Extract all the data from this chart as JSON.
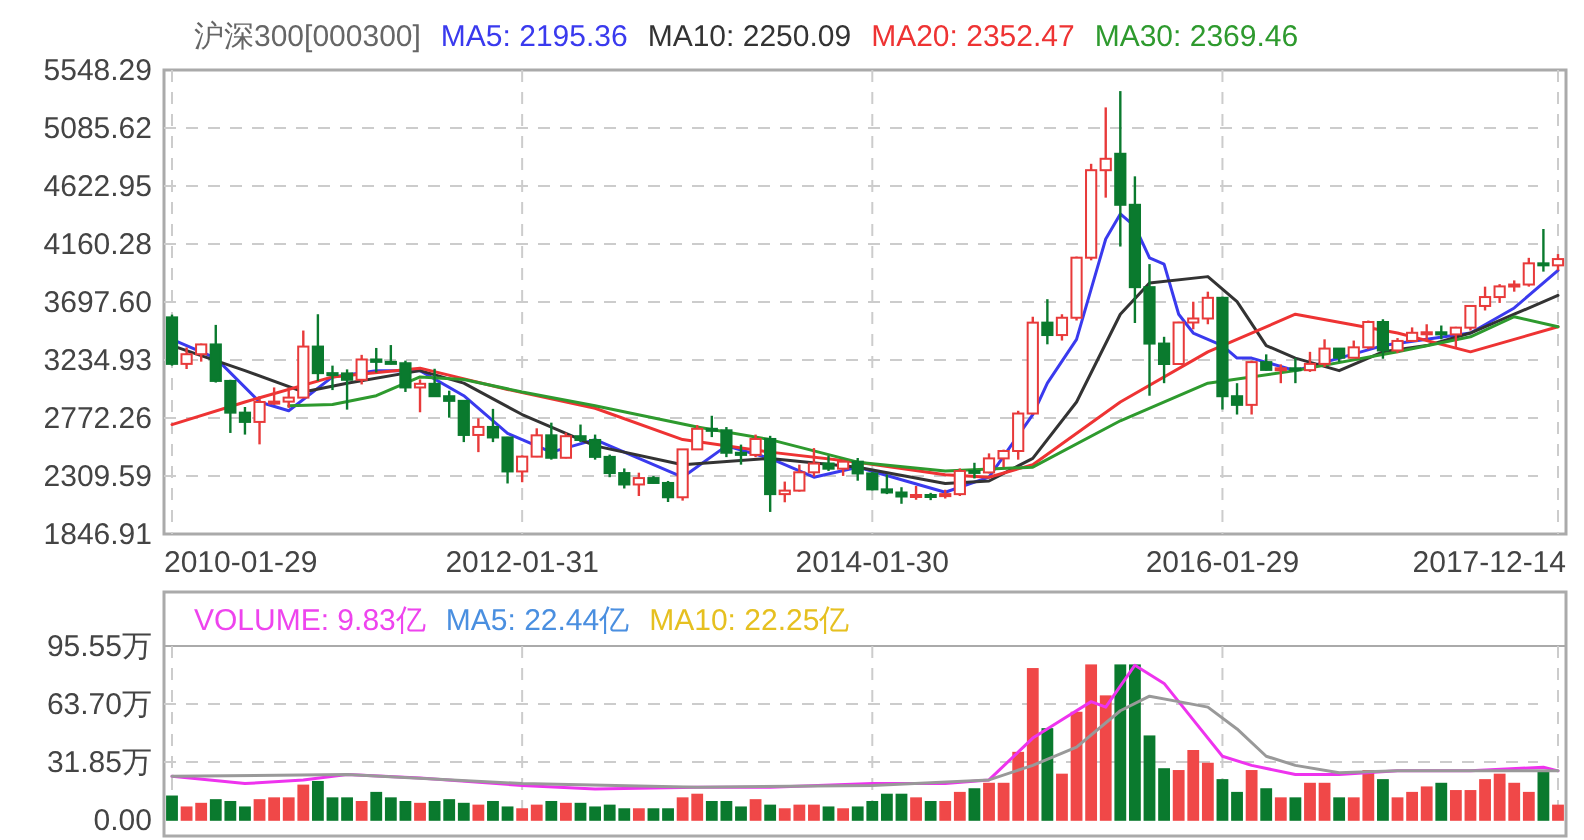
{
  "chart_data": [
    {
      "type": "candlestick",
      "title": "沪深300[000300]",
      "legend": "top left",
      "grid": true,
      "x": [
        "2010-01",
        "2010-02",
        "2010-03",
        "2010-04",
        "2010-05",
        "2010-06",
        "2010-07",
        "2010-08",
        "2010-09",
        "2010-10",
        "2010-11",
        "2010-12",
        "2011-01",
        "2011-02",
        "2011-03",
        "2011-04",
        "2011-05",
        "2011-06",
        "2011-07",
        "2011-08",
        "2011-09",
        "2011-10",
        "2011-11",
        "2011-12",
        "2012-01",
        "2012-02",
        "2012-03",
        "2012-04",
        "2012-05",
        "2012-06",
        "2012-07",
        "2012-08",
        "2012-09",
        "2012-10",
        "2012-11",
        "2012-12",
        "2013-01",
        "2013-02",
        "2013-03",
        "2013-04",
        "2013-05",
        "2013-06",
        "2013-07",
        "2013-08",
        "2013-09",
        "2013-10",
        "2013-11",
        "2013-12",
        "2014-01",
        "2014-02",
        "2014-03",
        "2014-04",
        "2014-05",
        "2014-06",
        "2014-07",
        "2014-08",
        "2014-09",
        "2014-10",
        "2014-11",
        "2014-12",
        "2015-01",
        "2015-02",
        "2015-03",
        "2015-04",
        "2015-05",
        "2015-06",
        "2015-07",
        "2015-08",
        "2015-09",
        "2015-10",
        "2015-11",
        "2015-12",
        "2016-01",
        "2016-02",
        "2016-03",
        "2016-04",
        "2016-05",
        "2016-06",
        "2016-07",
        "2016-08",
        "2016-09",
        "2016-10",
        "2016-11",
        "2016-12",
        "2017-01",
        "2017-02",
        "2017-03",
        "2017-04",
        "2017-05",
        "2017-06",
        "2017-07",
        "2017-08",
        "2017-09",
        "2017-10",
        "2017-11",
        "2017-12"
      ],
      "ohlc": [
        [
          3575,
          3597,
          3190,
          3204
        ],
        [
          3204,
          3335,
          3163,
          3281
        ],
        [
          3281,
          3366,
          3222,
          3359
        ],
        [
          3359,
          3515,
          3055,
          3068
        ],
        [
          3068,
          3077,
          2653,
          2815
        ],
        [
          2815,
          2860,
          2640,
          2741
        ],
        [
          2741,
          2946,
          2562,
          2900
        ],
        [
          2900,
          3016,
          2877,
          2903
        ],
        [
          2903,
          3015,
          2853,
          2935
        ],
        [
          2935,
          3470,
          2935,
          3342
        ],
        [
          3342,
          3600,
          3068,
          3130
        ],
        [
          3130,
          3190,
          2995,
          3128
        ],
        [
          3128,
          3160,
          2839,
          3077
        ],
        [
          3077,
          3276,
          3040,
          3239
        ],
        [
          3239,
          3331,
          3135,
          3220
        ],
        [
          3220,
          3354,
          3200,
          3209
        ],
        [
          3209,
          3230,
          2980,
          3016
        ],
        [
          3016,
          3080,
          2818,
          3045
        ],
        [
          3045,
          3165,
          2940,
          2946
        ],
        [
          2946,
          2990,
          2775,
          2909
        ],
        [
          2909,
          2915,
          2580,
          2637
        ],
        [
          2637,
          2770,
          2500,
          2701
        ],
        [
          2701,
          2845,
          2580,
          2617
        ],
        [
          2617,
          2622,
          2250,
          2346
        ],
        [
          2346,
          2474,
          2260,
          2464
        ],
        [
          2464,
          2690,
          2460,
          2634
        ],
        [
          2634,
          2735,
          2440,
          2455
        ],
        [
          2455,
          2655,
          2450,
          2627
        ],
        [
          2627,
          2720,
          2580,
          2597
        ],
        [
          2597,
          2640,
          2440,
          2462
        ],
        [
          2462,
          2480,
          2300,
          2333
        ],
        [
          2333,
          2370,
          2210,
          2242
        ],
        [
          2242,
          2336,
          2150,
          2293
        ],
        [
          2293,
          2310,
          2250,
          2254
        ],
        [
          2254,
          2270,
          2102,
          2140
        ],
        [
          2140,
          2525,
          2113,
          2522
        ],
        [
          2522,
          2716,
          2520,
          2686
        ],
        [
          2686,
          2790,
          2620,
          2674
        ],
        [
          2674,
          2700,
          2460,
          2495
        ],
        [
          2495,
          2560,
          2400,
          2478
        ],
        [
          2478,
          2640,
          2460,
          2605
        ],
        [
          2605,
          2630,
          2023,
          2165
        ],
        [
          2165,
          2265,
          2100,
          2193
        ],
        [
          2193,
          2400,
          2185,
          2339
        ],
        [
          2339,
          2532,
          2305,
          2409
        ],
        [
          2409,
          2470,
          2350,
          2368
        ],
        [
          2368,
          2440,
          2310,
          2424
        ],
        [
          2424,
          2453,
          2272,
          2330
        ],
        [
          2330,
          2340,
          2195,
          2203
        ],
        [
          2203,
          2320,
          2165,
          2178
        ],
        [
          2178,
          2220,
          2088,
          2146
        ],
        [
          2146,
          2230,
          2120,
          2158
        ],
        [
          2158,
          2175,
          2117,
          2157
        ],
        [
          2157,
          2200,
          2130,
          2165
        ],
        [
          2165,
          2370,
          2150,
          2350
        ],
        [
          2350,
          2415,
          2290,
          2338
        ],
        [
          2338,
          2490,
          2330,
          2450
        ],
        [
          2450,
          2520,
          2380,
          2509
        ],
        [
          2509,
          2830,
          2440,
          2808
        ],
        [
          2808,
          3580,
          2800,
          3533
        ],
        [
          3533,
          3720,
          3360,
          3434
        ],
        [
          3434,
          3600,
          3390,
          3572
        ],
        [
          3572,
          4060,
          3550,
          4051
        ],
        [
          4051,
          4800,
          4030,
          4749
        ],
        [
          4749,
          5250,
          4530,
          4840
        ],
        [
          4880,
          5380,
          4140,
          4473
        ],
        [
          4473,
          4700,
          3530,
          3816
        ],
        [
          3816,
          4000,
          2950,
          3366
        ],
        [
          3366,
          3420,
          3050,
          3203
        ],
        [
          3203,
          3540,
          3200,
          3534
        ],
        [
          3534,
          3700,
          3480,
          3566
        ],
        [
          3566,
          3780,
          3520,
          3731
        ],
        [
          3731,
          3740,
          2840,
          2946
        ],
        [
          2946,
          3050,
          2800,
          2877
        ],
        [
          2877,
          3230,
          2800,
          3218
        ],
        [
          3218,
          3280,
          3150,
          3156
        ],
        [
          3156,
          3200,
          3050,
          3169
        ],
        [
          3169,
          3250,
          3050,
          3154
        ],
        [
          3154,
          3300,
          3140,
          3204
        ],
        [
          3204,
          3400,
          3180,
          3326
        ],
        [
          3326,
          3330,
          3220,
          3253
        ],
        [
          3253,
          3390,
          3250,
          3336
        ],
        [
          3336,
          3550,
          3320,
          3538
        ],
        [
          3538,
          3560,
          3245,
          3311
        ],
        [
          3311,
          3410,
          3290,
          3387
        ],
        [
          3387,
          3495,
          3380,
          3452
        ],
        [
          3452,
          3520,
          3390,
          3456
        ],
        [
          3456,
          3510,
          3400,
          3439
        ],
        [
          3439,
          3500,
          3330,
          3493
        ],
        [
          3493,
          3670,
          3470,
          3666
        ],
        [
          3666,
          3820,
          3630,
          3737
        ],
        [
          3737,
          3840,
          3690,
          3822
        ],
        [
          3822,
          3870,
          3780,
          3837
        ],
        [
          3837,
          4050,
          3820,
          4006
        ],
        [
          4006,
          4280,
          3940,
          3990
        ],
        [
          3990,
          4080,
          3950,
          4040
        ]
      ],
      "xlim": [
        "2010-01",
        "2017-12"
      ],
      "xticks": [
        {
          "value": "2010-01",
          "label": "2010-01-29"
        },
        {
          "value": "2012-01",
          "label": "2012-01-31"
        },
        {
          "value": "2014-01",
          "label": "2014-01-30"
        },
        {
          "value": "2016-01",
          "label": "2016-01-29"
        },
        {
          "value": "2017-12",
          "label": "2017-12-14"
        }
      ],
      "ylim": [
        1846.91,
        5548.29
      ],
      "yticks": [
        1846.91,
        2309.59,
        2772.26,
        3234.93,
        {
          "value": 3697.6,
          "label": "3697.60"
        },
        4160.28,
        4622.95,
        5085.62,
        5548.29
      ],
      "series": [
        {
          "type": "line",
          "name": "MA5: 2195.36",
          "color": "#3a3aee",
          "x": [
            "2010-01",
            "2010-04",
            "2010-07",
            "2010-09",
            "2010-12",
            "2011-03",
            "2011-06",
            "2011-09",
            "2011-12",
            "2012-03",
            "2012-06",
            "2012-09",
            "2012-12",
            "2013-03",
            "2013-06",
            "2013-09",
            "2013-12",
            "2014-03",
            "2014-06",
            "2014-09",
            "2014-12",
            "2015-01",
            "2015-03",
            "2015-04",
            "2015-05",
            "2015-06",
            "2015-07",
            "2015-08",
            "2015-09",
            "2015-10",
            "2015-11",
            "2015-12",
            "2016-01",
            "2016-02",
            "2016-03",
            "2016-06",
            "2016-09",
            "2016-12",
            "2017-03",
            "2017-06",
            "2017-09",
            "2017-12"
          ],
          "values": [
            3400,
            3250,
            2900,
            2830,
            3100,
            3150,
            3150,
            2950,
            2650,
            2500,
            2600,
            2450,
            2300,
            2550,
            2450,
            2300,
            2380,
            2280,
            2180,
            2300,
            2800,
            3050,
            3400,
            3800,
            4200,
            4400,
            4300,
            4050,
            4000,
            3600,
            3450,
            3400,
            3350,
            3250,
            3250,
            3150,
            3250,
            3350,
            3400,
            3450,
            3650,
            3950
          ]
        },
        {
          "type": "line",
          "name": "MA10: 2250.09",
          "color": "#333333",
          "x": [
            "2010-01",
            "2010-06",
            "2010-10",
            "2011-01",
            "2011-06",
            "2011-09",
            "2012-01",
            "2012-06",
            "2012-12",
            "2013-06",
            "2013-12",
            "2014-06",
            "2014-09",
            "2014-12",
            "2015-03",
            "2015-06",
            "2015-08",
            "2015-12",
            "2016-02",
            "2016-04",
            "2016-06",
            "2016-09",
            "2016-12",
            "2017-03",
            "2017-06",
            "2017-09",
            "2017-12"
          ],
          "values": [
            3350,
            3150,
            2980,
            3050,
            3150,
            3050,
            2800,
            2550,
            2400,
            2450,
            2380,
            2250,
            2270,
            2450,
            2900,
            3600,
            3850,
            3900,
            3700,
            3350,
            3250,
            3150,
            3300,
            3350,
            3450,
            3600,
            3750
          ]
        },
        {
          "type": "line",
          "name": "MA20: 2352.47",
          "color": "#ee3333",
          "x": [
            "2010-01",
            "2010-06",
            "2010-12",
            "2011-06",
            "2011-12",
            "2012-06",
            "2012-12",
            "2013-06",
            "2013-12",
            "2014-06",
            "2014-09",
            "2014-12",
            "2015-06",
            "2015-12",
            "2016-06",
            "2017-01",
            "2017-06",
            "2017-12"
          ],
          "values": [
            2720,
            2900,
            3100,
            3170,
            3000,
            2850,
            2600,
            2500,
            2420,
            2320,
            2300,
            2400,
            2900,
            3300,
            3600,
            3450,
            3300,
            3500
          ]
        },
        {
          "type": "line",
          "name": "MA30: 2369.46",
          "color": "#2e9a2e",
          "x": [
            "2010-09",
            "2010-12",
            "2011-03",
            "2011-06",
            "2011-09",
            "2012-01",
            "2012-06",
            "2013-01",
            "2013-06",
            "2013-12",
            "2014-06",
            "2014-12",
            "2015-06",
            "2015-12",
            "2016-06",
            "2017-01",
            "2017-06",
            "2017-09",
            "2017-12"
          ],
          "values": [
            2870,
            2880,
            2950,
            3100,
            3080,
            2980,
            2870,
            2700,
            2600,
            2420,
            2350,
            2380,
            2750,
            3050,
            3150,
            3300,
            3420,
            3580,
            3500
          ]
        }
      ]
    },
    {
      "type": "bar",
      "grid": true,
      "tick_labels": "y",
      "annotations": [
        "VOLUME: 9.83亿",
        "MA5: 22.44亿",
        "MA10: 22.25亿"
      ],
      "x": [
        "2010-01",
        "2010-02",
        "2010-03",
        "2010-04",
        "2010-05",
        "2010-06",
        "2010-07",
        "2010-08",
        "2010-09",
        "2010-10",
        "2010-11",
        "2010-12",
        "2011-01",
        "2011-02",
        "2011-03",
        "2011-04",
        "2011-05",
        "2011-06",
        "2011-07",
        "2011-08",
        "2011-09",
        "2011-10",
        "2011-11",
        "2011-12",
        "2012-01",
        "2012-02",
        "2012-03",
        "2012-04",
        "2012-05",
        "2012-06",
        "2012-07",
        "2012-08",
        "2012-09",
        "2012-10",
        "2012-11",
        "2012-12",
        "2013-01",
        "2013-02",
        "2013-03",
        "2013-04",
        "2013-05",
        "2013-06",
        "2013-07",
        "2013-08",
        "2013-09",
        "2013-10",
        "2013-11",
        "2013-12",
        "2014-01",
        "2014-02",
        "2014-03",
        "2014-04",
        "2014-05",
        "2014-06",
        "2014-07",
        "2014-08",
        "2014-09",
        "2014-10",
        "2014-11",
        "2014-12",
        "2015-01",
        "2015-02",
        "2015-03",
        "2015-04",
        "2015-05",
        "2015-06",
        "2015-07",
        "2015-08",
        "2015-09",
        "2015-10",
        "2015-11",
        "2015-12",
        "2016-01",
        "2016-02",
        "2016-03",
        "2016-04",
        "2016-05",
        "2016-06",
        "2016-07",
        "2016-08",
        "2016-09",
        "2016-10",
        "2016-11",
        "2016-12",
        "2017-01",
        "2017-02",
        "2017-03",
        "2017-04",
        "2017-05",
        "2017-06",
        "2017-07",
        "2017-08",
        "2017-09",
        "2017-10",
        "2017-11",
        "2017-12"
      ],
      "xlim": [
        "2010-01",
        "2017-12"
      ],
      "ylim": [
        0,
        95.55
      ],
      "yticks": [
        {
          "value": 0,
          "label": "0.00"
        },
        {
          "value": 31.85,
          "label": "31.85万"
        },
        {
          "value": 63.7,
          "label": "63.70万"
        },
        {
          "value": 95.55,
          "label": "95.55万"
        }
      ],
      "series": [
        {
          "type": "bar",
          "values": [
            13,
            7,
            9,
            11,
            10,
            7,
            11,
            12,
            12,
            19,
            21,
            12,
            12,
            10,
            15,
            12,
            10,
            9,
            10,
            11,
            9,
            8,
            10,
            7,
            6,
            8,
            10,
            9,
            9,
            7,
            8,
            6,
            6,
            6,
            6,
            12,
            14,
            10,
            10,
            7,
            11,
            8,
            6,
            8,
            8,
            7,
            6,
            7,
            10,
            14,
            14,
            12,
            10,
            10,
            15,
            17,
            20,
            20,
            37,
            83,
            50,
            25,
            59,
            85,
            68,
            85,
            85,
            46,
            28,
            27,
            38,
            31,
            22,
            15,
            27,
            17,
            12,
            12,
            20,
            20,
            12,
            12,
            27,
            22,
            12,
            15,
            18,
            20,
            16,
            16,
            22,
            25,
            20,
            15,
            27,
            8
          ],
          "colors": [
            "#0a7a2e",
            "#f04848",
            "#f04848",
            "#0a7a2e",
            "#0a7a2e",
            "#0a7a2e",
            "#f04848",
            "#f04848",
            "#f04848",
            "#f04848",
            "#0a7a2e",
            "#0a7a2e",
            "#0a7a2e",
            "#f04848",
            "#0a7a2e",
            "#0a7a2e",
            "#0a7a2e",
            "#f04848",
            "#0a7a2e",
            "#0a7a2e",
            "#0a7a2e",
            "#f04848",
            "#0a7a2e",
            "#0a7a2e",
            "#f04848",
            "#f04848",
            "#0a7a2e",
            "#f04848",
            "#0a7a2e",
            "#0a7a2e",
            "#0a7a2e",
            "#0a7a2e",
            "#f04848",
            "#0a7a2e",
            "#0a7a2e",
            "#f04848",
            "#f04848",
            "#0a7a2e",
            "#0a7a2e",
            "#0a7a2e",
            "#f04848",
            "#0a7a2e",
            "#f04848",
            "#f04848",
            "#f04848",
            "#0a7a2e",
            "#f04848",
            "#0a7a2e",
            "#0a7a2e",
            "#0a7a2e",
            "#0a7a2e",
            "#f04848",
            "#0a7a2e",
            "#f04848",
            "#f04848",
            "#0a7a2e",
            "#f04848",
            "#f04848",
            "#f04848",
            "#f04848",
            "#0a7a2e",
            "#f04848",
            "#f04848",
            "#f04848",
            "#f04848",
            "#0a7a2e",
            "#0a7a2e",
            "#0a7a2e",
            "#0a7a2e",
            "#f04848",
            "#f04848",
            "#f04848",
            "#0a7a2e",
            "#0a7a2e",
            "#f04848",
            "#0a7a2e",
            "#f04848",
            "#0a7a2e",
            "#f04848",
            "#f04848",
            "#0a7a2e",
            "#f04848",
            "#f04848",
            "#0a7a2e",
            "#f04848",
            "#f04848",
            "#f04848",
            "#0a7a2e",
            "#f04848",
            "#f04848",
            "#f04848",
            "#f04848",
            "#f04848",
            "#f04848",
            "#0a7a2e",
            "#f04848"
          ]
        },
        {
          "type": "line",
          "color": "#ee33ee",
          "x": [
            "2010-01",
            "2010-06",
            "2010-10",
            "2011-01",
            "2011-06",
            "2012-01",
            "2012-06",
            "2013-01",
            "2013-06",
            "2014-01",
            "2014-06",
            "2014-09",
            "2014-12",
            "2015-02",
            "2015-04",
            "2015-05",
            "2015-07",
            "2015-09",
            "2015-11",
            "2016-01",
            "2016-03",
            "2016-06",
            "2016-09",
            "2017-01",
            "2017-06",
            "2017-11",
            "2017-12"
          ],
          "values": [
            24,
            20,
            22,
            25,
            23,
            19,
            17,
            18,
            18,
            20,
            20,
            22,
            45,
            55,
            65,
            62,
            85,
            75,
            55,
            35,
            30,
            25,
            25,
            27,
            27,
            29,
            27
          ]
        },
        {
          "type": "line",
          "color": "#999999",
          "x": [
            "2010-01",
            "2011-01",
            "2012-01",
            "2013-01",
            "2014-01",
            "2014-09",
            "2014-12",
            "2015-03",
            "2015-06",
            "2015-08",
            "2015-10",
            "2015-12",
            "2016-02",
            "2016-04",
            "2016-06",
            "2016-09",
            "2017-01",
            "2017-06",
            "2017-12"
          ],
          "values": [
            24,
            25,
            20,
            18,
            19,
            22,
            30,
            40,
            60,
            68,
            65,
            62,
            50,
            35,
            30,
            26,
            27,
            27,
            27
          ]
        }
      ]
    }
  ]
}
